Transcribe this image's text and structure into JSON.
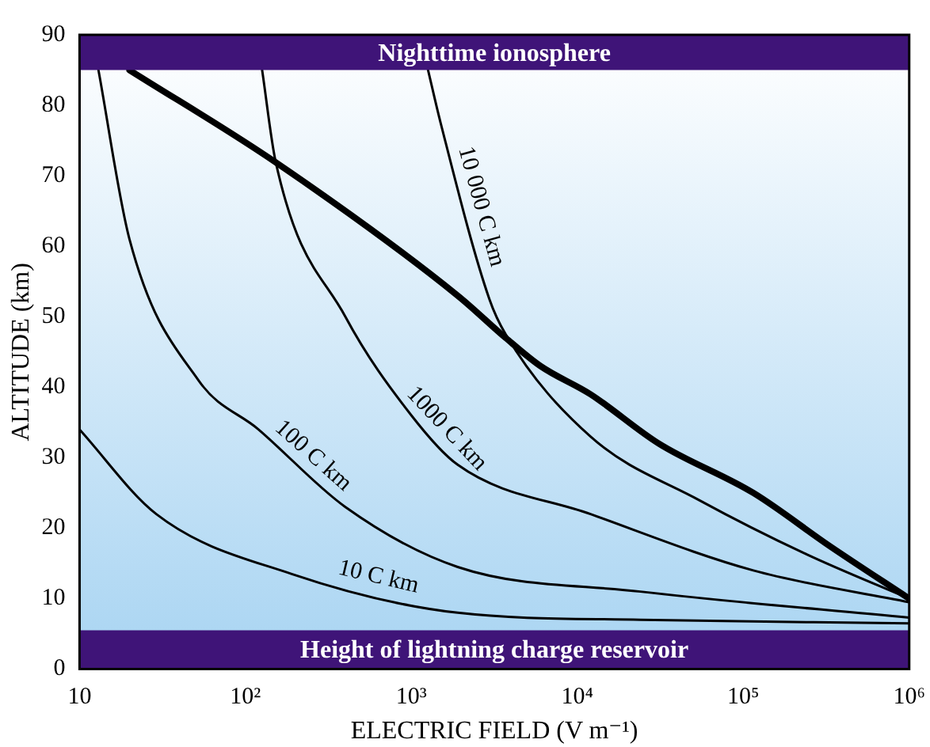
{
  "chart_data": {
    "type": "line",
    "xlabel": "ELECTRIC FIELD (V m⁻¹)",
    "ylabel": "ALTITUDE (km)",
    "log": "x",
    "xlim": [
      10,
      1000000
    ],
    "xticks": [
      10,
      {
        "value": 100,
        "label": "10²"
      },
      {
        "value": 1000,
        "label": "10³"
      },
      {
        "value": 10000,
        "label": "10⁴"
      },
      {
        "value": 100000,
        "label": "10⁵"
      },
      {
        "value": 1000000,
        "label": "10⁶"
      }
    ],
    "ylim": [
      0,
      90
    ],
    "yticks": [
      0,
      10,
      20,
      30,
      40,
      50,
      60,
      70,
      80,
      90
    ],
    "grid": false,
    "legend": false,
    "marker": "none",
    "line_style": "solid",
    "bands": [
      {
        "axis": "y",
        "from": 85,
        "to": 90,
        "label": "Nighttime ionosphere",
        "color": "#3f1478"
      },
      {
        "axis": "y",
        "from": 0,
        "to": 5.5,
        "label": "Height of lightning charge reservoir",
        "color": "#3f1478"
      }
    ],
    "series": [
      {
        "color": "#000000",
        "x": [
          20,
          150,
          1900,
          3700,
          6000,
          12000,
          31000,
          115000,
          330000,
          1000000
        ],
        "values": [
          85,
          72,
          53,
          47,
          43,
          39,
          32,
          25,
          17.5,
          10
        ]
      },
      {
        "name": "10 C km",
        "color": "#000000",
        "x": [
          10,
          29,
          190,
          1900,
          24000,
          1000000
        ],
        "values": [
          34,
          22,
          13.5,
          8,
          7,
          6.5
        ]
      },
      {
        "name": "100 C km",
        "color": "#000000",
        "x": [
          13,
          20,
          52,
          120,
          400,
          1900,
          24000,
          1000000
        ],
        "values": [
          85,
          61,
          41,
          34,
          23,
          14.5,
          11,
          7.3
        ]
      },
      {
        "name": "1000 C km",
        "color": "#000000",
        "x": [
          126,
          152,
          400,
          1000,
          1900,
          12000,
          115000,
          1000000
        ],
        "values": [
          85,
          72,
          50,
          36,
          29,
          22,
          14,
          9.5
        ]
      },
      {
        "name": "10 000 C km",
        "color": "#000000",
        "x": [
          1260,
          1500,
          2950,
          3700,
          12000,
          54000,
          240000,
          1000000
        ],
        "values": [
          85,
          77.5,
          52.5,
          47.5,
          33,
          24,
          16.3,
          10
        ]
      }
    ]
  }
}
